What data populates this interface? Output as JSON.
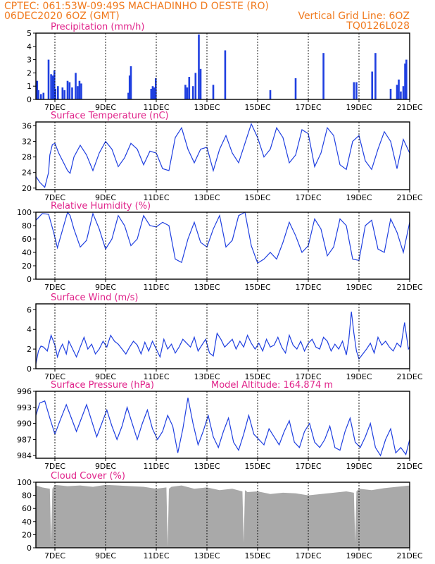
{
  "header": {
    "line1_left": "CPTEC:  061:53W-09:49S  MACHADINHO D OESTE (RO)",
    "line2_left": "06DEC2020 6OZ (GMT)",
    "line1_right": "Vertical Grid Line: 6OZ",
    "line2_right": "TQ0126L028"
  },
  "colors": {
    "header": "#f07a1e",
    "titles": "#e0238a",
    "series": "#1f3fe0",
    "cloud": "#a9a9a9"
  },
  "x_axis": {
    "start_day": 6.25,
    "end_day": 21.0,
    "tick_labels": [
      "7DEC",
      "9DEC",
      "11DEC",
      "13DEC",
      "15DEC",
      "17DEC",
      "19DEC",
      "21DEC"
    ],
    "tick_days": [
      7,
      9,
      11,
      13,
      15,
      17,
      19,
      21
    ],
    "vertical_grid_line": "6OZ"
  },
  "chart_data": [
    {
      "type": "bar",
      "title": "Precipitation (mm/h)",
      "ylim": [
        0,
        5
      ],
      "yticks": [
        0,
        1,
        2,
        3,
        4,
        5
      ],
      "x_days": [
        6.3,
        6.35,
        6.45,
        6.55,
        6.75,
        6.85,
        6.92,
        6.98,
        7.02,
        7.12,
        7.3,
        7.38,
        7.5,
        7.58,
        7.68,
        7.82,
        7.9,
        7.97,
        8.04,
        9.9,
        9.95,
        10.0,
        10.8,
        10.86,
        10.92,
        10.98,
        12.15,
        12.22,
        12.3,
        12.45,
        12.55,
        12.68,
        12.75,
        13.25,
        13.72,
        15.5,
        16.5,
        17.6,
        18.8,
        18.9,
        19.52,
        19.65,
        20.25,
        20.5,
        20.57,
        20.65,
        20.75,
        20.82,
        20.87
      ],
      "values": [
        1.4,
        0.7,
        0.4,
        0.5,
        3.0,
        1.9,
        1.8,
        2.2,
        0.8,
        1.0,
        0.9,
        0.7,
        1.4,
        1.3,
        0.9,
        2.0,
        1.0,
        1.4,
        1.2,
        0.5,
        1.8,
        2.5,
        0.8,
        1.0,
        0.9,
        1.6,
        1.1,
        0.9,
        1.7,
        1.0,
        2.0,
        4.9,
        2.3,
        1.1,
        3.7,
        0.7,
        1.6,
        3.5,
        1.3,
        1.3,
        2.1,
        3.5,
        0.8,
        1.1,
        1.5,
        0.6,
        1.0,
        2.7,
        3.0
      ]
    },
    {
      "type": "line",
      "title": "Surface Temperature (nC)",
      "ylim": [
        19.6,
        37
      ],
      "yticks": [
        20,
        24,
        28,
        32,
        36
      ],
      "x": [
        6.25,
        6.4,
        6.6,
        6.75,
        6.8,
        6.9,
        7.0,
        7.15,
        7.5,
        7.6,
        7.75,
        8.0,
        8.25,
        8.5,
        8.75,
        9.0,
        9.25,
        9.5,
        9.75,
        10.0,
        10.25,
        10.5,
        10.75,
        11.0,
        11.25,
        11.5,
        11.75,
        12.0,
        12.25,
        12.5,
        12.75,
        13.0,
        13.25,
        13.5,
        13.75,
        14.0,
        14.25,
        14.5,
        14.75,
        15.0,
        15.25,
        15.5,
        15.75,
        16.0,
        16.25,
        16.5,
        16.75,
        17.0,
        17.25,
        17.5,
        17.75,
        18.0,
        18.25,
        18.5,
        18.75,
        19.0,
        19.25,
        19.5,
        19.75,
        20.0,
        20.25,
        20.5,
        20.75,
        21.0
      ],
      "values": [
        23,
        21.5,
        20.2,
        24.0,
        28.5,
        31.2,
        31.5,
        29.0,
        24.5,
        23.8,
        28.0,
        31.0,
        28.5,
        24.5,
        29.0,
        32.0,
        30.0,
        25.5,
        27.8,
        31.5,
        30.0,
        26.0,
        29.5,
        29.0,
        25.0,
        24.5,
        33.0,
        35.5,
        30.0,
        26.5,
        30.0,
        30.5,
        24.5,
        30.0,
        33.5,
        29.0,
        26.5,
        31.5,
        36.5,
        33.0,
        28.0,
        30.0,
        35.5,
        33.0,
        26.5,
        28.5,
        35.0,
        34.0,
        25.5,
        29.0,
        35.5,
        33.5,
        26.0,
        24.8,
        32.0,
        33.5,
        27.0,
        24.8,
        30.0,
        34.5,
        32.0,
        25.0,
        32.5,
        29.0
      ]
    },
    {
      "type": "line",
      "title": "Relative Humidity (%)",
      "ylim": [
        0,
        100
      ],
      "yticks": [
        0,
        20,
        40,
        60,
        80,
        100
      ],
      "x": [
        6.25,
        6.5,
        6.75,
        6.95,
        7.1,
        7.5,
        7.6,
        7.75,
        8.0,
        8.25,
        8.5,
        8.75,
        9.0,
        9.25,
        9.5,
        9.75,
        10.0,
        10.25,
        10.5,
        10.75,
        11.0,
        11.25,
        11.5,
        11.75,
        12.0,
        12.25,
        12.5,
        12.75,
        13.0,
        13.25,
        13.5,
        13.75,
        14.0,
        14.25,
        14.5,
        14.75,
        15.0,
        15.25,
        15.5,
        15.75,
        16.0,
        16.25,
        16.5,
        16.75,
        17.0,
        17.25,
        17.5,
        17.75,
        18.0,
        18.25,
        18.5,
        18.75,
        19.0,
        19.25,
        19.5,
        19.75,
        20.0,
        20.25,
        20.5,
        20.75,
        21.0
      ],
      "values": [
        88,
        98,
        97,
        70,
        47,
        100,
        95,
        75,
        48,
        58,
        98,
        75,
        45,
        60,
        95,
        80,
        50,
        60,
        95,
        80,
        78,
        85,
        80,
        30,
        25,
        60,
        85,
        55,
        48,
        75,
        95,
        48,
        58,
        95,
        100,
        50,
        24,
        30,
        40,
        30,
        55,
        85,
        65,
        40,
        50,
        90,
        75,
        35,
        48,
        90,
        80,
        30,
        28,
        80,
        88,
        45,
        40,
        90,
        70,
        40,
        85
      ]
    },
    {
      "type": "line",
      "title": "Surface Wind (m/s)",
      "ylim": [
        0,
        6.6
      ],
      "yticks": [
        0,
        2,
        4,
        6
      ],
      "x": [
        6.25,
        6.35,
        6.45,
        6.55,
        6.7,
        6.85,
        7.0,
        7.1,
        7.2,
        7.3,
        7.45,
        7.55,
        7.7,
        7.85,
        8.0,
        8.15,
        8.3,
        8.45,
        8.6,
        8.75,
        8.9,
        9.05,
        9.2,
        9.35,
        9.5,
        9.65,
        9.8,
        9.95,
        10.1,
        10.25,
        10.4,
        10.55,
        10.7,
        10.85,
        11.0,
        11.15,
        11.3,
        11.45,
        11.6,
        11.75,
        11.9,
        12.05,
        12.2,
        12.35,
        12.5,
        12.65,
        12.8,
        12.95,
        13.1,
        13.25,
        13.4,
        13.55,
        13.7,
        13.85,
        14.0,
        14.15,
        14.3,
        14.45,
        14.6,
        14.75,
        14.9,
        15.05,
        15.2,
        15.35,
        15.5,
        15.65,
        15.8,
        15.95,
        16.1,
        16.25,
        16.4,
        16.55,
        16.7,
        16.85,
        17.0,
        17.15,
        17.3,
        17.45,
        17.6,
        17.75,
        17.9,
        18.05,
        18.2,
        18.35,
        18.5,
        18.6,
        18.7,
        18.8,
        18.9,
        19.0,
        19.15,
        19.3,
        19.45,
        19.6,
        19.75,
        19.9,
        20.05,
        20.2,
        20.35,
        20.5,
        20.65,
        20.8,
        20.95,
        21.0
      ],
      "values": [
        0.5,
        1.8,
        2.3,
        2.2,
        1.8,
        3.4,
        2.4,
        1.2,
        2.0,
        2.5,
        1.5,
        2.8,
        2.0,
        1.2,
        2.2,
        3.2,
        2.0,
        2.5,
        1.5,
        2.0,
        2.8,
        2.2,
        3.4,
        2.8,
        2.5,
        2.0,
        1.5,
        2.2,
        2.8,
        2.4,
        1.5,
        2.7,
        1.8,
        2.8,
        2.0,
        1.2,
        3.0,
        2.0,
        2.5,
        1.6,
        2.2,
        3.0,
        2.6,
        2.2,
        3.2,
        1.8,
        2.4,
        3.0,
        1.6,
        1.3,
        3.6,
        3.0,
        2.2,
        2.6,
        3.0,
        2.0,
        2.8,
        2.2,
        3.4,
        2.6,
        2.0,
        2.6,
        1.8,
        3.0,
        2.2,
        2.4,
        3.2,
        2.2,
        1.6,
        3.4,
        2.4,
        2.0,
        2.8,
        1.8,
        2.6,
        3.0,
        2.2,
        2.0,
        3.2,
        2.8,
        1.8,
        2.5,
        2.0,
        2.8,
        1.4,
        3.0,
        5.8,
        3.6,
        1.8,
        1.0,
        1.5,
        2.0,
        2.6,
        1.6,
        3.2,
        2.4,
        2.8,
        2.2,
        1.8,
        2.6,
        2.2,
        4.7,
        2.0,
        2.2
      ]
    },
    {
      "type": "line",
      "title": "Surface Pressure (hPa)",
      "annotation": "Model Altitude: 164.874 m",
      "ylim": [
        983.5,
        996
      ],
      "yticks": [
        984,
        987,
        990,
        993,
        996
      ],
      "x": [
        6.25,
        6.4,
        6.6,
        6.8,
        7.0,
        7.2,
        7.45,
        7.65,
        7.85,
        8.05,
        8.25,
        8.45,
        8.65,
        8.85,
        9.05,
        9.25,
        9.45,
        9.65,
        9.85,
        10.05,
        10.25,
        10.45,
        10.65,
        10.85,
        11.05,
        11.25,
        11.45,
        11.65,
        11.85,
        12.05,
        12.25,
        12.45,
        12.65,
        12.85,
        13.05,
        13.25,
        13.45,
        13.65,
        13.85,
        14.05,
        14.25,
        14.45,
        14.65,
        14.85,
        15.05,
        15.25,
        15.45,
        15.65,
        15.85,
        16.05,
        16.25,
        16.45,
        16.65,
        16.85,
        17.05,
        17.25,
        17.45,
        17.65,
        17.85,
        18.05,
        18.25,
        18.45,
        18.65,
        18.85,
        19.05,
        19.25,
        19.45,
        19.65,
        19.85,
        20.05,
        20.25,
        20.45,
        20.65,
        20.85,
        21.0
      ],
      "values": [
        991.5,
        993.8,
        994.2,
        991.0,
        988.0,
        990.5,
        993.5,
        991.0,
        988.5,
        991.0,
        993.5,
        990.5,
        987.5,
        990.0,
        992.5,
        989.5,
        987.0,
        989.5,
        993.0,
        990.0,
        987.0,
        990.0,
        992.5,
        989.0,
        987.0,
        988.5,
        991.5,
        989.5,
        984.5,
        989.0,
        994.8,
        990.0,
        986.0,
        988.5,
        991.5,
        987.5,
        985.5,
        988.5,
        991.0,
        986.5,
        985.0,
        988.0,
        991.5,
        988.0,
        987.0,
        986.0,
        989.0,
        987.5,
        986.0,
        988.5,
        990.5,
        986.5,
        985.5,
        988.5,
        990.0,
        986.5,
        985.5,
        987.0,
        989.5,
        985.5,
        985.0,
        988.5,
        991.0,
        986.5,
        985.5,
        987.5,
        990.0,
        985.5,
        984.0,
        987.0,
        989.0,
        984.5,
        985.5,
        984.2,
        987.0
      ]
    },
    {
      "type": "area",
      "title": "Cloud Cover (%)",
      "ylim": [
        0,
        100
      ],
      "yticks": [
        0,
        20,
        40,
        60,
        80,
        100
      ],
      "x": [
        6.25,
        6.5,
        6.8,
        6.85,
        6.9,
        7.0,
        7.5,
        8.0,
        8.5,
        9.0,
        9.5,
        10.0,
        10.5,
        11.0,
        11.4,
        11.45,
        11.5,
        11.6,
        12.0,
        12.5,
        13.0,
        13.5,
        14.0,
        14.4,
        14.45,
        14.5,
        14.6,
        15.0,
        15.5,
        16.0,
        16.5,
        17.0,
        17.5,
        18.0,
        18.5,
        18.8,
        18.85,
        18.9,
        19.0,
        19.5,
        20.0,
        20.5,
        21.0
      ],
      "values": [
        95,
        92,
        90,
        5,
        90,
        96,
        94,
        95,
        93,
        96,
        95,
        94,
        93,
        90,
        92,
        2,
        90,
        93,
        95,
        90,
        92,
        88,
        90,
        86,
        8,
        88,
        85,
        86,
        82,
        84,
        83,
        80,
        82,
        84,
        86,
        84,
        8,
        86,
        90,
        88,
        91,
        93,
        95
      ]
    }
  ]
}
